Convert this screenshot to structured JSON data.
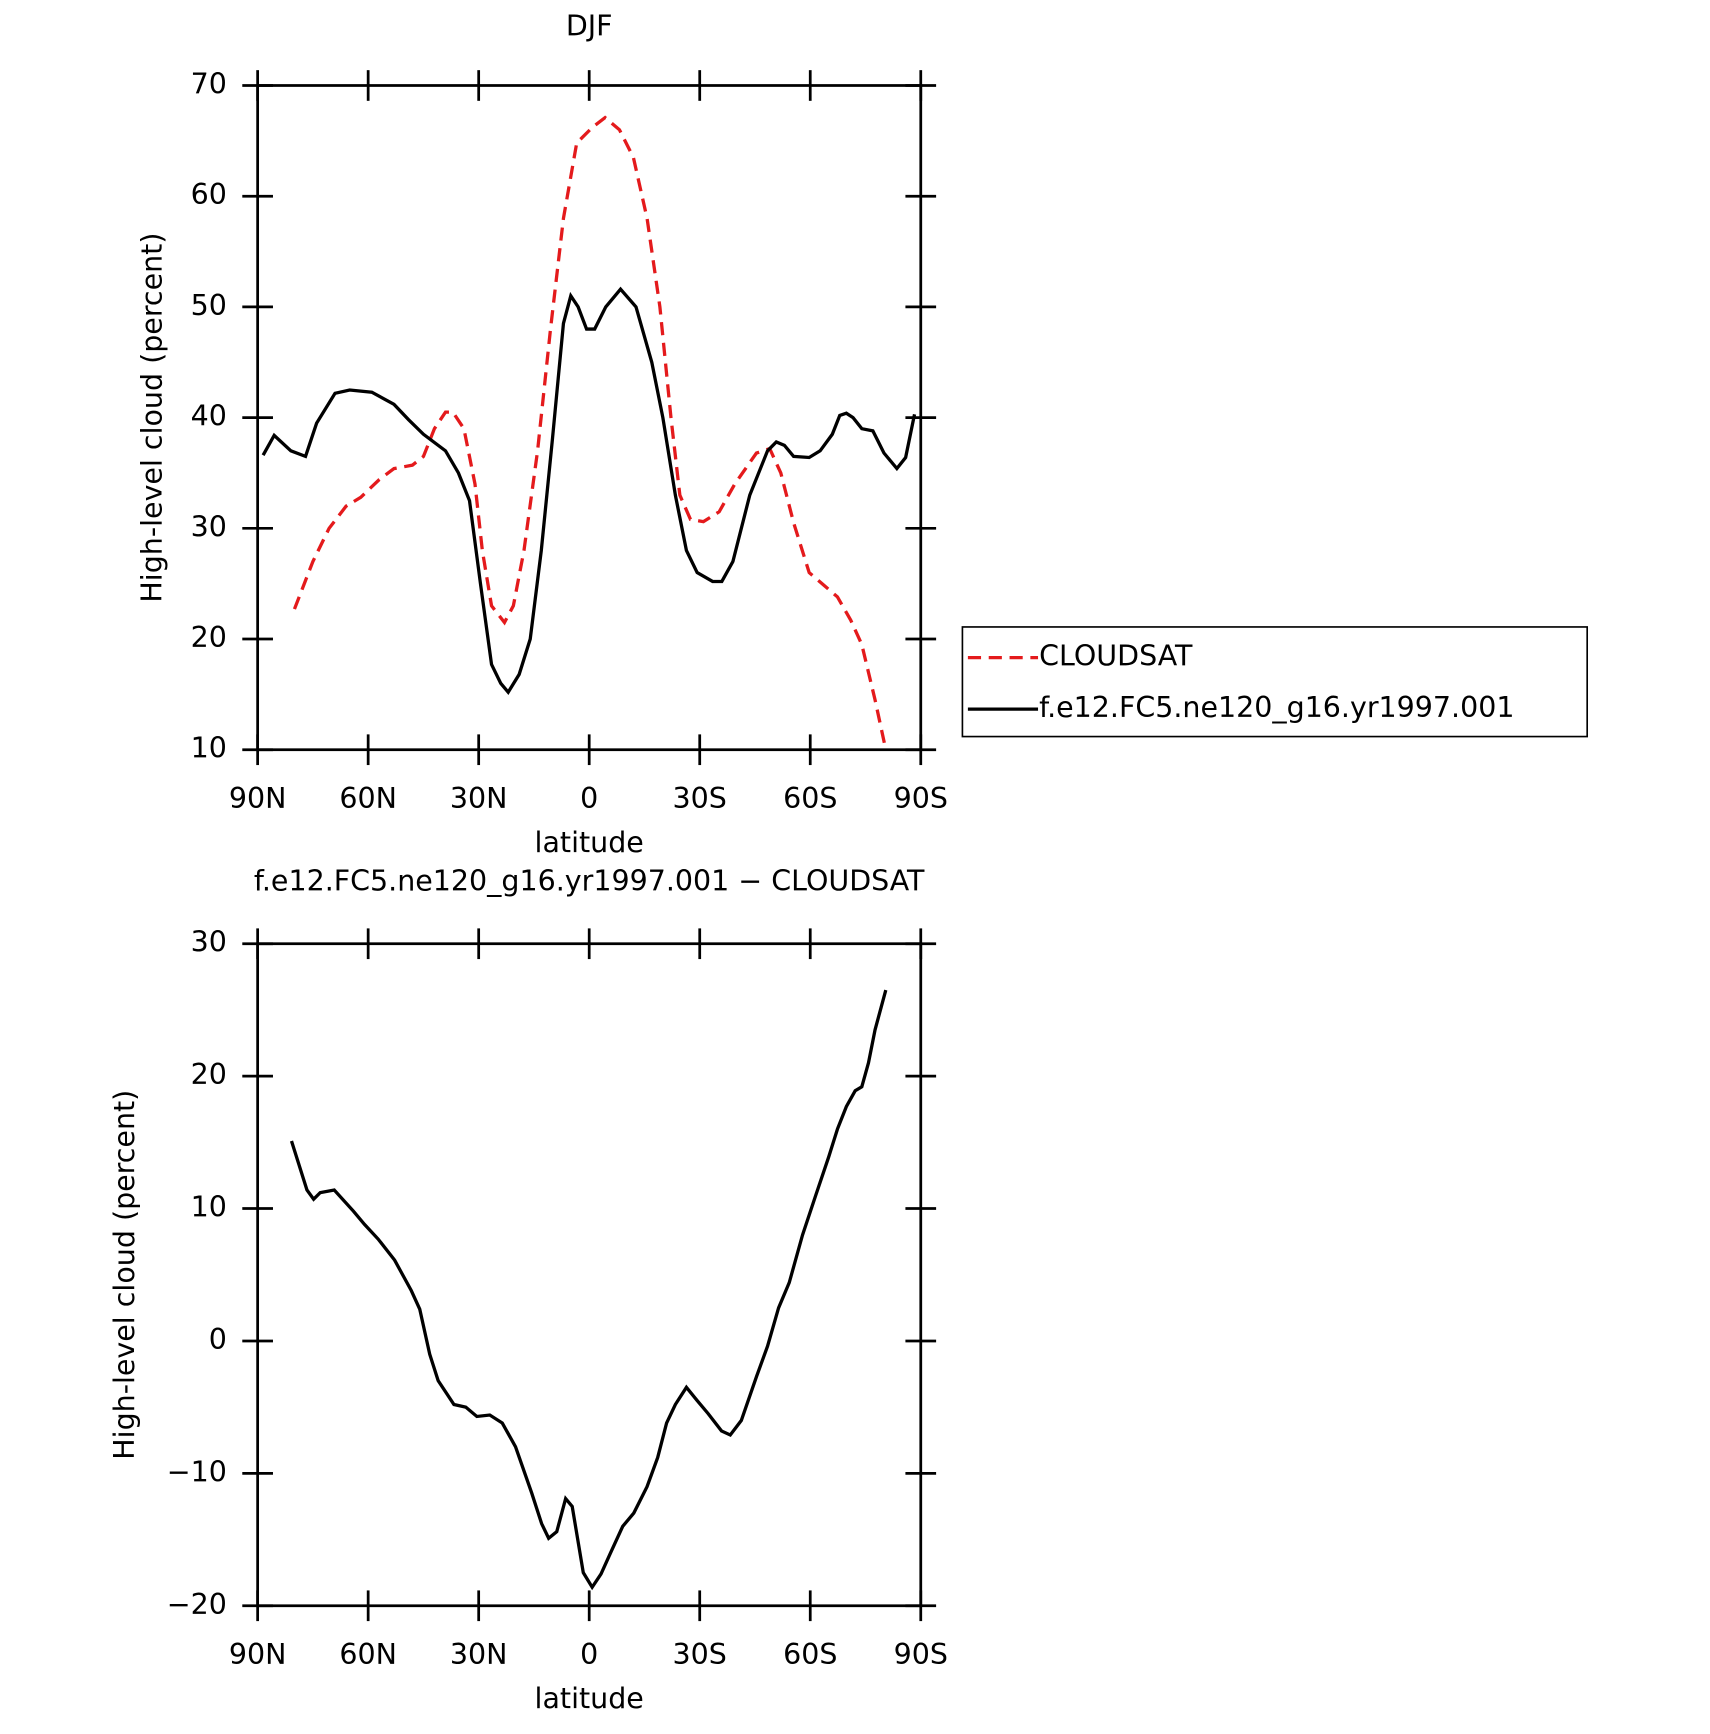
{
  "chart_data": [
    {
      "type": "line",
      "title": "DJF",
      "xlabel": "latitude",
      "ylabel": "High-level cloud (percent)",
      "xlim": [
        90,
        -90
      ],
      "xticks": [
        {
          "value": 90,
          "label": "90N"
        },
        {
          "value": 60,
          "label": "60N"
        },
        {
          "value": 30,
          "label": "30N"
        },
        0,
        {
          "value": -30,
          "label": "30S"
        },
        {
          "value": -60,
          "label": "60S"
        },
        {
          "value": -90,
          "label": "90S"
        }
      ],
      "ylim": [
        10,
        70
      ],
      "yticks": [
        10,
        20,
        30,
        40,
        50,
        60,
        70
      ],
      "legend": "right",
      "series": [
        {
          "name": "CLOUDSAT",
          "color": "#e41a1c",
          "linestyle": "dashed",
          "x": [
            80,
            75,
            70.6,
            66,
            62,
            57,
            53,
            48,
            45,
            42,
            39,
            37,
            34,
            31,
            29,
            26.5,
            23,
            20.6,
            17.7,
            14,
            10.5,
            7,
            3.4,
            -0.8,
            -4.3,
            -8.2,
            -12,
            -15.7,
            -19.2,
            -22.2,
            -24.6,
            -27.5,
            -31,
            -35.3,
            -39.5,
            -45.4,
            -49,
            -52,
            -55.5,
            -59.7,
            -63.9,
            -67.4,
            -71,
            -74,
            -77.6,
            -80.5
          ],
          "values": [
            22.7,
            27,
            30,
            32,
            32.8,
            34.4,
            35.4,
            35.7,
            36.5,
            39,
            40.5,
            40.5,
            39,
            34,
            28,
            23,
            21.5,
            23,
            28,
            37,
            48,
            58,
            64.8,
            66.2,
            67.1,
            66,
            63.5,
            58,
            50,
            40,
            33,
            30.8,
            30.6,
            31.5,
            34,
            36.8,
            37.2,
            35,
            30.5,
            26,
            24.8,
            23.8,
            21.7,
            19.5,
            14.5,
            10
          ]
        },
        {
          "name": "f.e12.FC5.ne120_g16.yr1997.001",
          "color": "#000000",
          "linestyle": "solid",
          "x": [
            88.5,
            85.5,
            81,
            77,
            74,
            69,
            65,
            59,
            53,
            49,
            45,
            39,
            35.5,
            32.5,
            29.5,
            26.5,
            24,
            22,
            19,
            16,
            13,
            10,
            7,
            5,
            3,
            0.7,
            -1.5,
            -4.5,
            -8.5,
            -12.7,
            -17,
            -20,
            -23.4,
            -26.4,
            -29.3,
            -33.5,
            -36,
            -39,
            -43.6,
            -48.4,
            -50.8,
            -53,
            -55.5,
            -59.7,
            -62.7,
            -66,
            -68,
            -69.8,
            -71.6,
            -74,
            -77,
            -80,
            -83.5,
            -85.9,
            -88.3
          ],
          "values": [
            36.6,
            38.4,
            37,
            36.5,
            39.5,
            42.2,
            42.5,
            42.3,
            41.2,
            39.8,
            38.5,
            37,
            35,
            32.5,
            25,
            17.7,
            16,
            15.2,
            16.8,
            20,
            28,
            38,
            48.5,
            51,
            50,
            48,
            48,
            50,
            51.6,
            50,
            45,
            40,
            33,
            28,
            26,
            25.2,
            25.2,
            27,
            33,
            37,
            37.8,
            37.5,
            36.5,
            36.4,
            37,
            38.5,
            40.2,
            40.4,
            40,
            39,
            38.8,
            36.8,
            35.4,
            36.4,
            40.3
          ]
        }
      ]
    },
    {
      "type": "line",
      "title": "f.e12.FC5.ne120_g16.yr1997.001 − CLOUDSAT",
      "xlabel": "latitude",
      "ylabel": "High-level cloud (percent)",
      "xlim": [
        90,
        -90
      ],
      "xticks": [
        {
          "value": 90,
          "label": "90N"
        },
        {
          "value": 60,
          "label": "60N"
        },
        {
          "value": 30,
          "label": "30N"
        },
        0,
        {
          "value": -30,
          "label": "30S"
        },
        {
          "value": -60,
          "label": "60S"
        },
        {
          "value": -90,
          "label": "90S"
        }
      ],
      "ylim": [
        -20,
        30
      ],
      "yticks": [
        {
          "value": -20,
          "label": "−20"
        },
        {
          "value": -10,
          "label": "−10"
        },
        0,
        10,
        20,
        30
      ],
      "series": [
        {
          "color": "#000000",
          "linestyle": "solid",
          "x": [
            80.8,
            76.6,
            74.8,
            73,
            69.2,
            64,
            61,
            57.3,
            52.8,
            48.3,
            46,
            43.3,
            41,
            36.7,
            33.5,
            30.5,
            27,
            23.6,
            20,
            15.6,
            12.9,
            11,
            8.8,
            6.4,
            4.6,
            1.6,
            -0.8,
            -3.2,
            -5.8,
            -9.1,
            -12.1,
            -15.7,
            -18.6,
            -21,
            -23.4,
            -26.4,
            -29.3,
            -32.3,
            -35.9,
            -38.3,
            -41.3,
            -45.4,
            -48.4,
            -51.4,
            -54.3,
            -57.9,
            -61.5,
            -65,
            -67.4,
            -69.8,
            -72.2,
            -74,
            -75.8,
            -77.6,
            -80.5
          ],
          "values": [
            15.1,
            11.4,
            10.7,
            11.2,
            11.4,
            9.8,
            8.8,
            7.7,
            6.1,
            3.8,
            2.4,
            -1,
            -3,
            -4.8,
            -5,
            -5.7,
            -5.6,
            -6.2,
            -8,
            -11.5,
            -13.8,
            -14.9,
            -14.4,
            -11.9,
            -12.5,
            -17.5,
            -18.6,
            -17.6,
            -16,
            -14,
            -13,
            -11,
            -8.8,
            -6.2,
            -4.8,
            -3.5,
            -4.5,
            -5.5,
            -6.8,
            -7.1,
            -6,
            -2.7,
            -0.4,
            2.5,
            4.4,
            8,
            11,
            13.9,
            16,
            17.7,
            18.9,
            19.2,
            21,
            23.5,
            26.5
          ]
        }
      ]
    }
  ]
}
